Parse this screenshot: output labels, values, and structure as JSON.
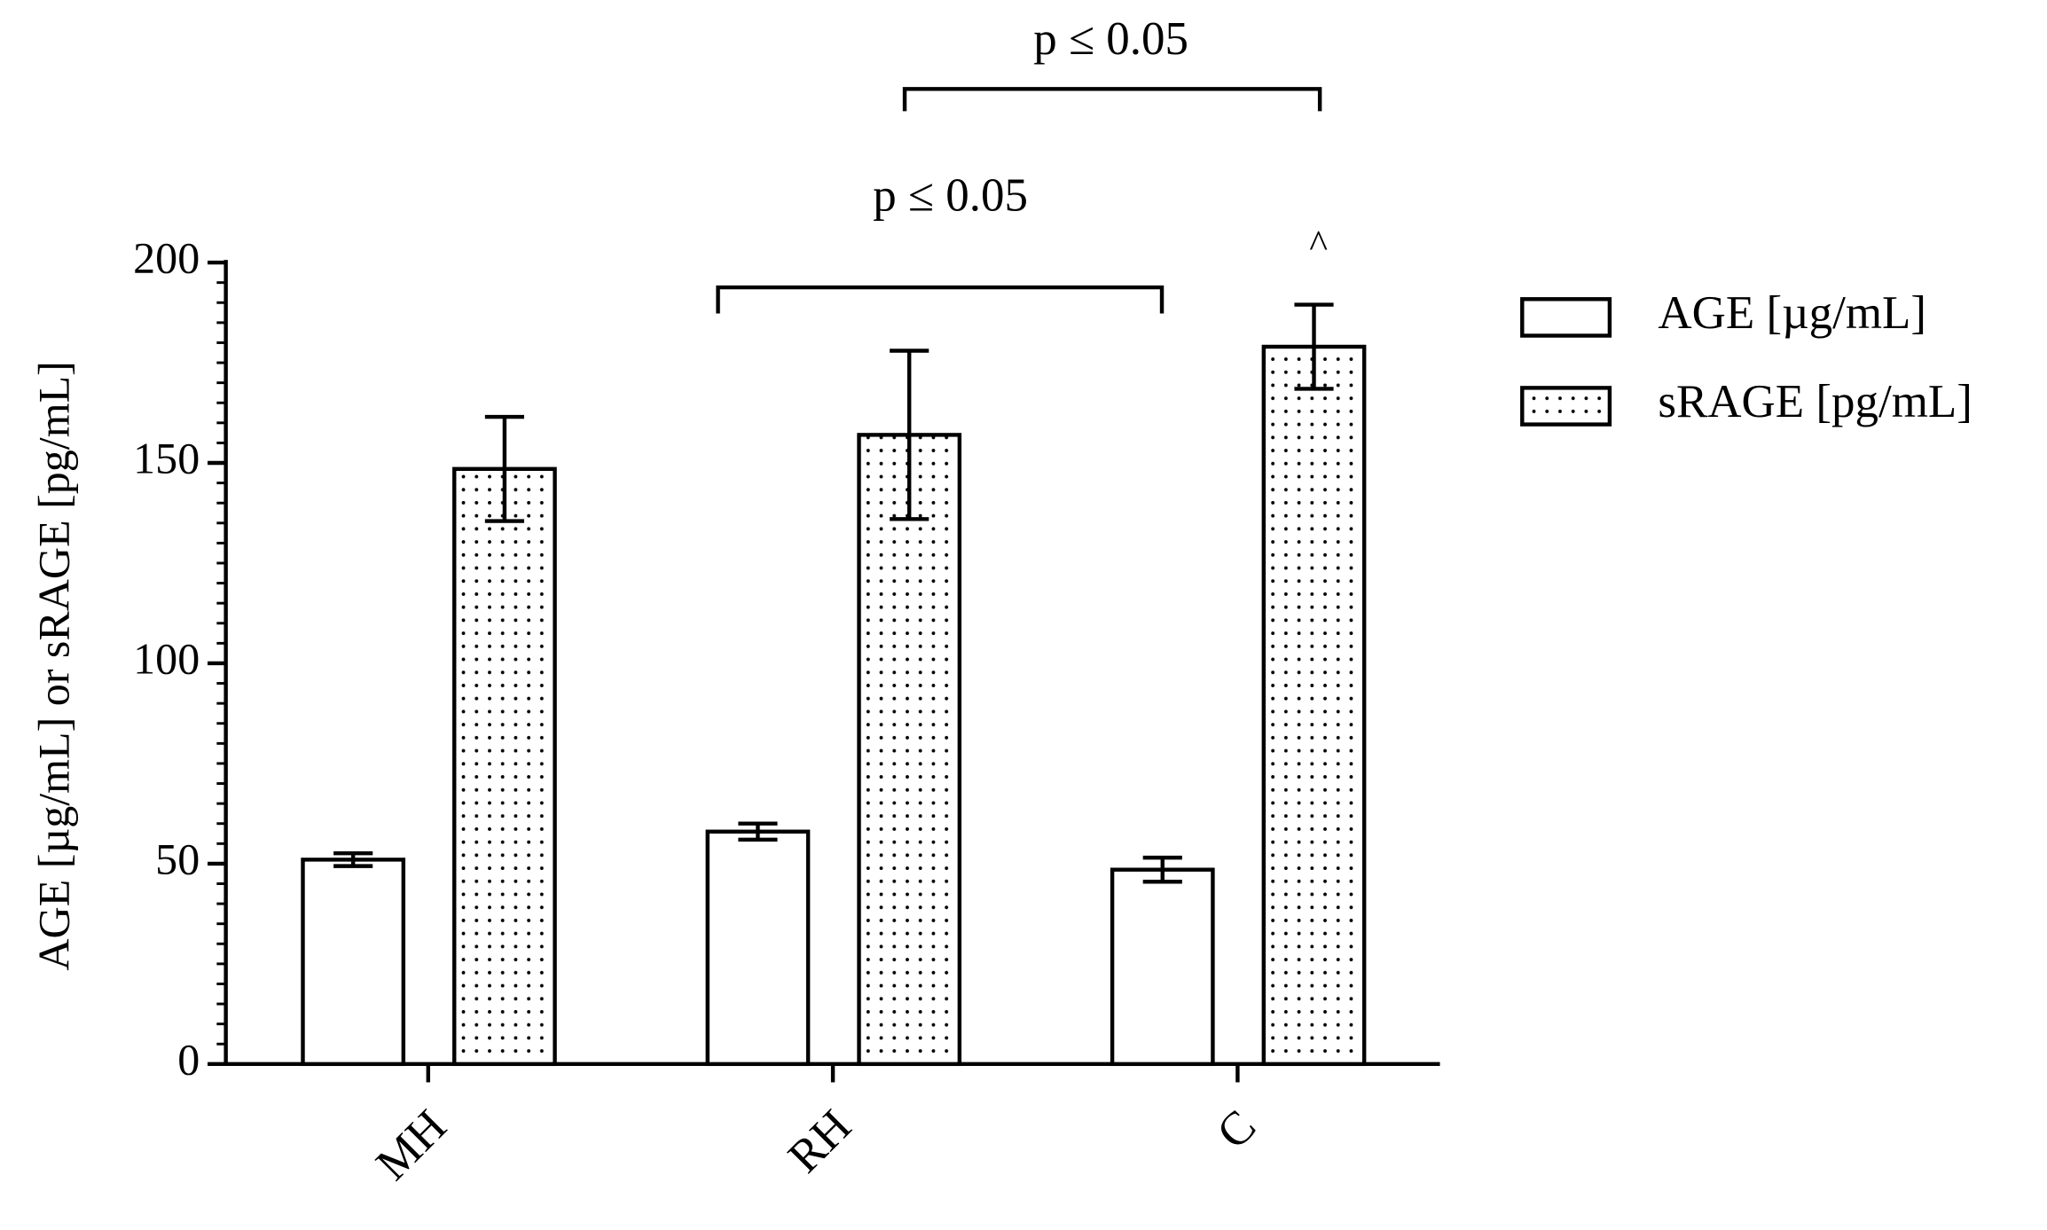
{
  "chart_data": {
    "type": "bar",
    "ylabel": "AGE [µg/mL] or sRAGE [pg/mL]",
    "categories": [
      "MH",
      "RH",
      "C"
    ],
    "series": [
      {
        "name": "AGE [µg/mL]",
        "color": "#ffffff",
        "values": [
          51,
          58,
          48.5
        ],
        "errors": [
          1.6,
          2,
          3
        ]
      },
      {
        "name": "sRAGE [pg/mL]",
        "color": "#ffffff",
        "pattern": "dotted",
        "values": [
          148.5,
          157,
          179
        ],
        "errors": [
          13,
          21,
          10.5
        ]
      }
    ],
    "ylim": [
      0,
      200
    ],
    "yticks": [
      0,
      50,
      100,
      150,
      200
    ],
    "annotations": [
      "p ≤ 0.05",
      "p ≤ 0.05",
      "^"
    ],
    "legend": "right"
  }
}
